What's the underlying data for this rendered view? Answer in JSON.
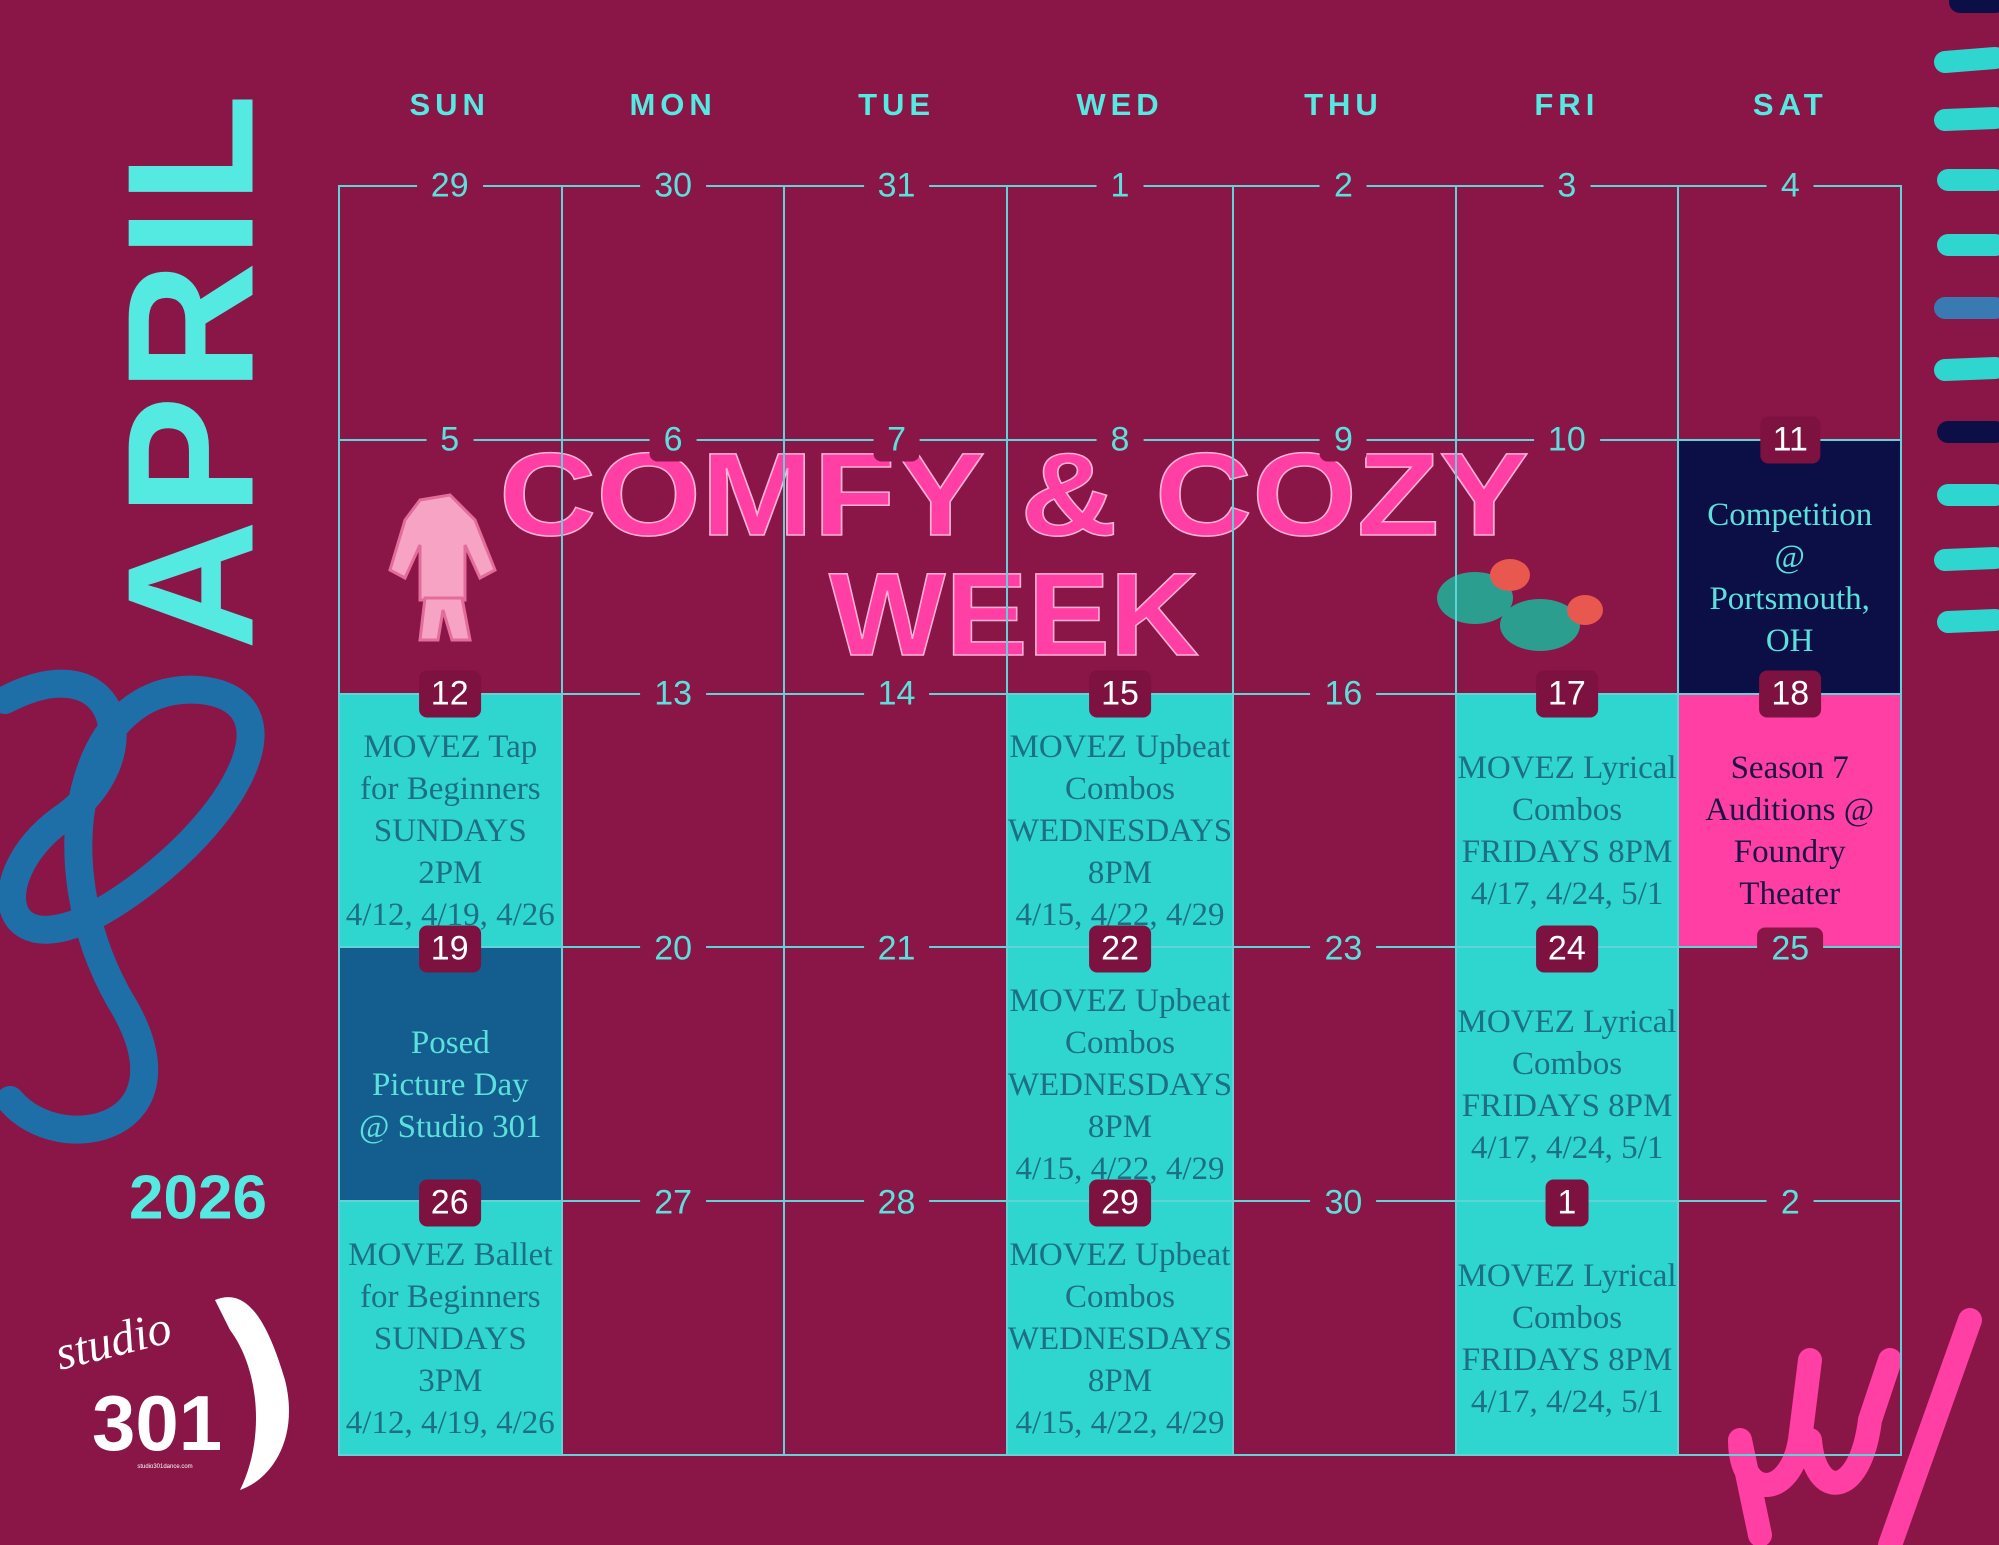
{
  "month": "APRIL",
  "year": "2026",
  "weekdays": [
    "SUN",
    "MON",
    "TUE",
    "WED",
    "THU",
    "FRI",
    "SAT"
  ],
  "banner": {
    "line1": "COMFY & COZY",
    "line2": "WEEK"
  },
  "logo": {
    "script": "studio",
    "number": "301",
    "site": "studio301dance.com"
  },
  "weeks": [
    [
      {
        "day": "29"
      },
      {
        "day": "30"
      },
      {
        "day": "31"
      },
      {
        "day": "1"
      },
      {
        "day": "2"
      },
      {
        "day": "3"
      },
      {
        "day": "4"
      }
    ],
    [
      {
        "day": "5"
      },
      {
        "day": "6"
      },
      {
        "day": "7"
      },
      {
        "day": "8"
      },
      {
        "day": "9"
      },
      {
        "day": "10"
      },
      {
        "day": "11",
        "color": "#0c0f45",
        "text_color": "#5ce0dc",
        "lines": [
          "Competition",
          "@",
          "Portsmouth,",
          "OH"
        ]
      }
    ],
    [
      {
        "day": "12",
        "color": "#2fd6cf",
        "text_color": "#1d6f86",
        "lines": [
          "MOVEZ Tap",
          "for Beginners",
          "SUNDAYS 2PM",
          "4/12, 4/19, 4/26"
        ]
      },
      {
        "day": "13"
      },
      {
        "day": "14"
      },
      {
        "day": "15",
        "color": "#2fd6cf",
        "text_color": "#1d6f86",
        "lines": [
          "MOVEZ Upbeat",
          "Combos",
          "WEDNESDAYS",
          "8PM",
          "4/15, 4/22, 4/29"
        ]
      },
      {
        "day": "16"
      },
      {
        "day": "17",
        "color": "#2fd6cf",
        "text_color": "#1d6f86",
        "lines": [
          "MOVEZ Lyrical",
          "Combos",
          "FRIDAYS 8PM",
          "4/17, 4/24, 5/1"
        ]
      },
      {
        "day": "18",
        "color": "#ff3fa4",
        "text_color": "#1a1446",
        "lines": [
          "Season 7",
          "Auditions @",
          "Foundry",
          "Theater"
        ]
      }
    ],
    [
      {
        "day": "19",
        "color": "#135e8e",
        "text_color": "#5ce0dc",
        "lines": [
          "Posed",
          "Picture Day",
          "@ Studio 301"
        ]
      },
      {
        "day": "20"
      },
      {
        "day": "21"
      },
      {
        "day": "22",
        "color": "#2fd6cf",
        "text_color": "#1d6f86",
        "lines": [
          "MOVEZ Upbeat",
          "Combos",
          "WEDNESDAYS",
          "8PM",
          "4/15, 4/22, 4/29"
        ]
      },
      {
        "day": "23"
      },
      {
        "day": "24",
        "color": "#2fd6cf",
        "text_color": "#1d6f86",
        "lines": [
          "MOVEZ Lyrical",
          "Combos",
          "FRIDAYS 8PM",
          "4/17, 4/24, 5/1"
        ]
      },
      {
        "day": "25"
      }
    ],
    [
      {
        "day": "26",
        "color": "#2fd6cf",
        "text_color": "#1d6f86",
        "lines": [
          "MOVEZ Ballet",
          "for Beginners",
          "SUNDAYS 3PM",
          "4/12, 4/19, 4/26"
        ]
      },
      {
        "day": "27"
      },
      {
        "day": "28"
      },
      {
        "day": "29",
        "color": "#2fd6cf",
        "text_color": "#1d6f86",
        "lines": [
          "MOVEZ Upbeat",
          "Combos",
          "WEDNESDAYS",
          "8PM",
          "4/15, 4/22, 4/29"
        ]
      },
      {
        "day": "30"
      },
      {
        "day": "1",
        "color": "#2fd6cf",
        "text_color": "#1d6f86",
        "lines": [
          "MOVEZ Lyrical",
          "Combos",
          "FRIDAYS 8PM",
          "4/17, 4/24, 5/1"
        ]
      },
      {
        "day": "2"
      }
    ]
  ]
}
